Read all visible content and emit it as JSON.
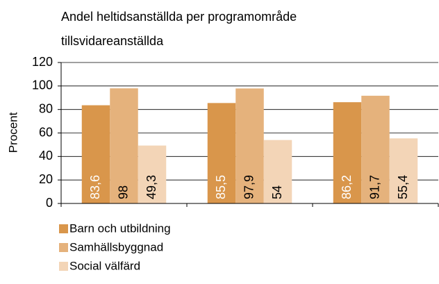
{
  "chart_data": {
    "type": "bar",
    "title": "Andel heltidsanställda per programområde",
    "subtitle": "tillsvidareanställda",
    "y_label": "Procent",
    "categories": [
      null,
      null,
      null
    ],
    "series": [
      {
        "name": "Barn och utbildning",
        "color": "#d9964b",
        "label_color": "#ffffff",
        "values": [
          83.6,
          85.5,
          86.2
        ],
        "value_labels": [
          "83,6",
          "85,5",
          "86,2"
        ]
      },
      {
        "name": "Samhällsbyggnad",
        "color": "#e5b27c",
        "label_color": "#000000",
        "values": [
          98,
          97.9,
          91.7
        ],
        "value_labels": [
          "98",
          "97,9",
          "91,7"
        ]
      },
      {
        "name": "Social välfärd",
        "color": "#f3d5b7",
        "label_color": "#000000",
        "values": [
          49.3,
          54,
          55.4
        ],
        "value_labels": [
          "49,3",
          "54",
          "55,4"
        ]
      }
    ],
    "ylim": [
      0,
      120
    ],
    "yticks": [
      0,
      20,
      40,
      60,
      80,
      100,
      120
    ],
    "grid": true
  }
}
